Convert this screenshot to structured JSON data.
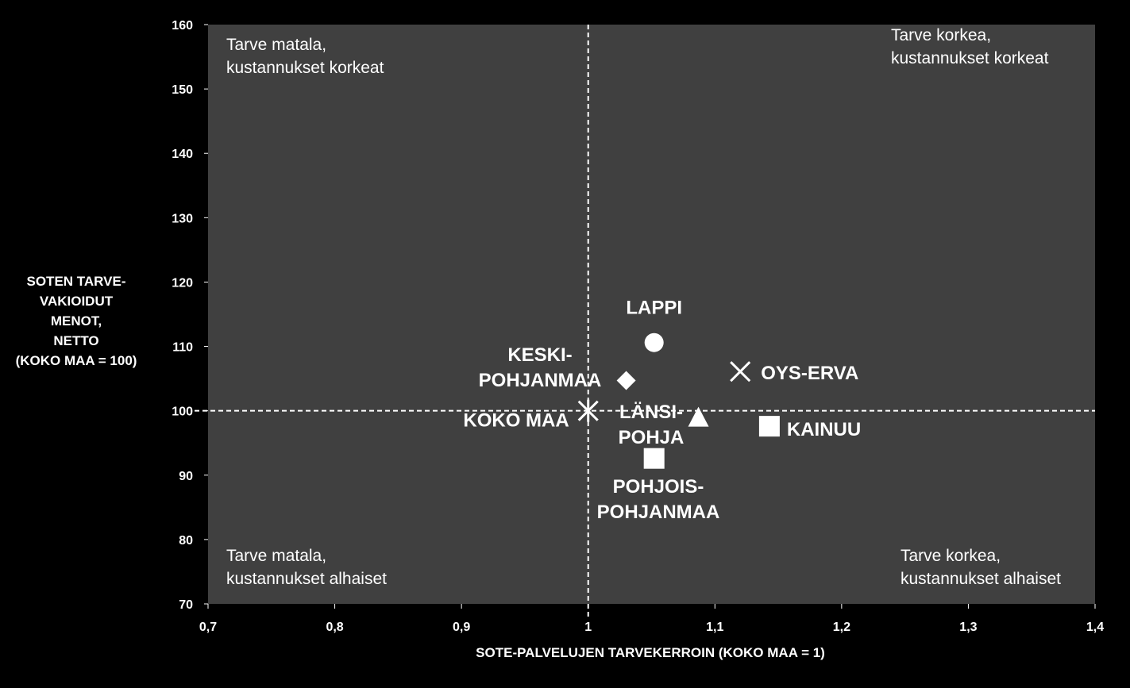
{
  "chart_data": {
    "type": "scatter",
    "title": "",
    "xlabel": "SOTE-PALVELUJEN TARVEKERROIN (KOKO MAA = 1)",
    "ylabel_lines": [
      "SOTEN TARVE-",
      "VAKIOIDUT",
      "MENOT,",
      "NETTO",
      "(KOKO MAA = 100)"
    ],
    "xlim": [
      0.7,
      1.4
    ],
    "ylim": [
      70,
      160
    ],
    "x_ticks": [
      {
        "value": 0.7,
        "label": "0,7"
      },
      {
        "value": 0.8,
        "label": "0,8"
      },
      {
        "value": 0.9,
        "label": "0,9"
      },
      {
        "value": 1.0,
        "label": "1"
      },
      {
        "value": 1.1,
        "label": "1,1"
      },
      {
        "value": 1.2,
        "label": "1,2"
      },
      {
        "value": 1.3,
        "label": "1,3"
      },
      {
        "value": 1.4,
        "label": "1,4"
      }
    ],
    "y_ticks": [
      {
        "value": 70,
        "label": "70"
      },
      {
        "value": 80,
        "label": "80"
      },
      {
        "value": 90,
        "label": "90"
      },
      {
        "value": 100,
        "label": "100"
      },
      {
        "value": 110,
        "label": "110"
      },
      {
        "value": 120,
        "label": "120"
      },
      {
        "value": 130,
        "label": "130"
      },
      {
        "value": 140,
        "label": "140"
      },
      {
        "value": 150,
        "label": "150"
      },
      {
        "value": 160,
        "label": "160"
      }
    ],
    "reference_lines": {
      "x": 1.0,
      "y": 100
    },
    "grid": false,
    "quadrant_labels": [
      {
        "id": "top-left",
        "lines": [
          "Tarve matala,",
          "kustannukset korkeat"
        ]
      },
      {
        "id": "top-right",
        "lines": [
          "Tarve korkea,",
          "kustannukset korkeat"
        ]
      },
      {
        "id": "bottom-left",
        "lines": [
          "Tarve matala,",
          "kustannukset alhaiset"
        ]
      },
      {
        "id": "bottom-right",
        "lines": [
          "Tarve korkea,",
          "kustannukset alhaiset"
        ]
      }
    ],
    "points": [
      {
        "id": "lappi",
        "label_lines": [
          "LAPPI"
        ],
        "x": 1.052,
        "y": 110.6,
        "marker": "circle",
        "label_pos": "above"
      },
      {
        "id": "keski-pohjanmaa",
        "label_lines": [
          "KESKI-",
          "POHJANMAA"
        ],
        "x": 1.03,
        "y": 104.7,
        "marker": "diamond",
        "label_pos": "left"
      },
      {
        "id": "oys-erva",
        "label_lines": [
          "OYS-ERVA"
        ],
        "x": 1.12,
        "y": 106.1,
        "marker": "x",
        "label_pos": "right"
      },
      {
        "id": "koko-maa",
        "label_lines": [
          "KOKO MAA"
        ],
        "x": 1.0,
        "y": 100.0,
        "marker": "star",
        "label_pos": "left"
      },
      {
        "id": "lansi-pohja",
        "label_lines": [
          "LÄNSI-",
          "POHJA"
        ],
        "x": 1.087,
        "y": 98.9,
        "marker": "triangle",
        "label_pos": "left"
      },
      {
        "id": "kainuu",
        "label_lines": [
          "KAINUU"
        ],
        "x": 1.143,
        "y": 97.6,
        "marker": "square",
        "label_pos": "right"
      },
      {
        "id": "pohjois-pohjanmaa",
        "label_lines": [
          "POHJOIS-",
          "POHJANMAA"
        ],
        "x": 1.052,
        "y": 92.6,
        "marker": "square",
        "label_pos": "below"
      }
    ],
    "colors": {
      "background": "#000000",
      "plot_area": "#404040",
      "marker": "#ffffff",
      "text": "#ffffff"
    }
  }
}
